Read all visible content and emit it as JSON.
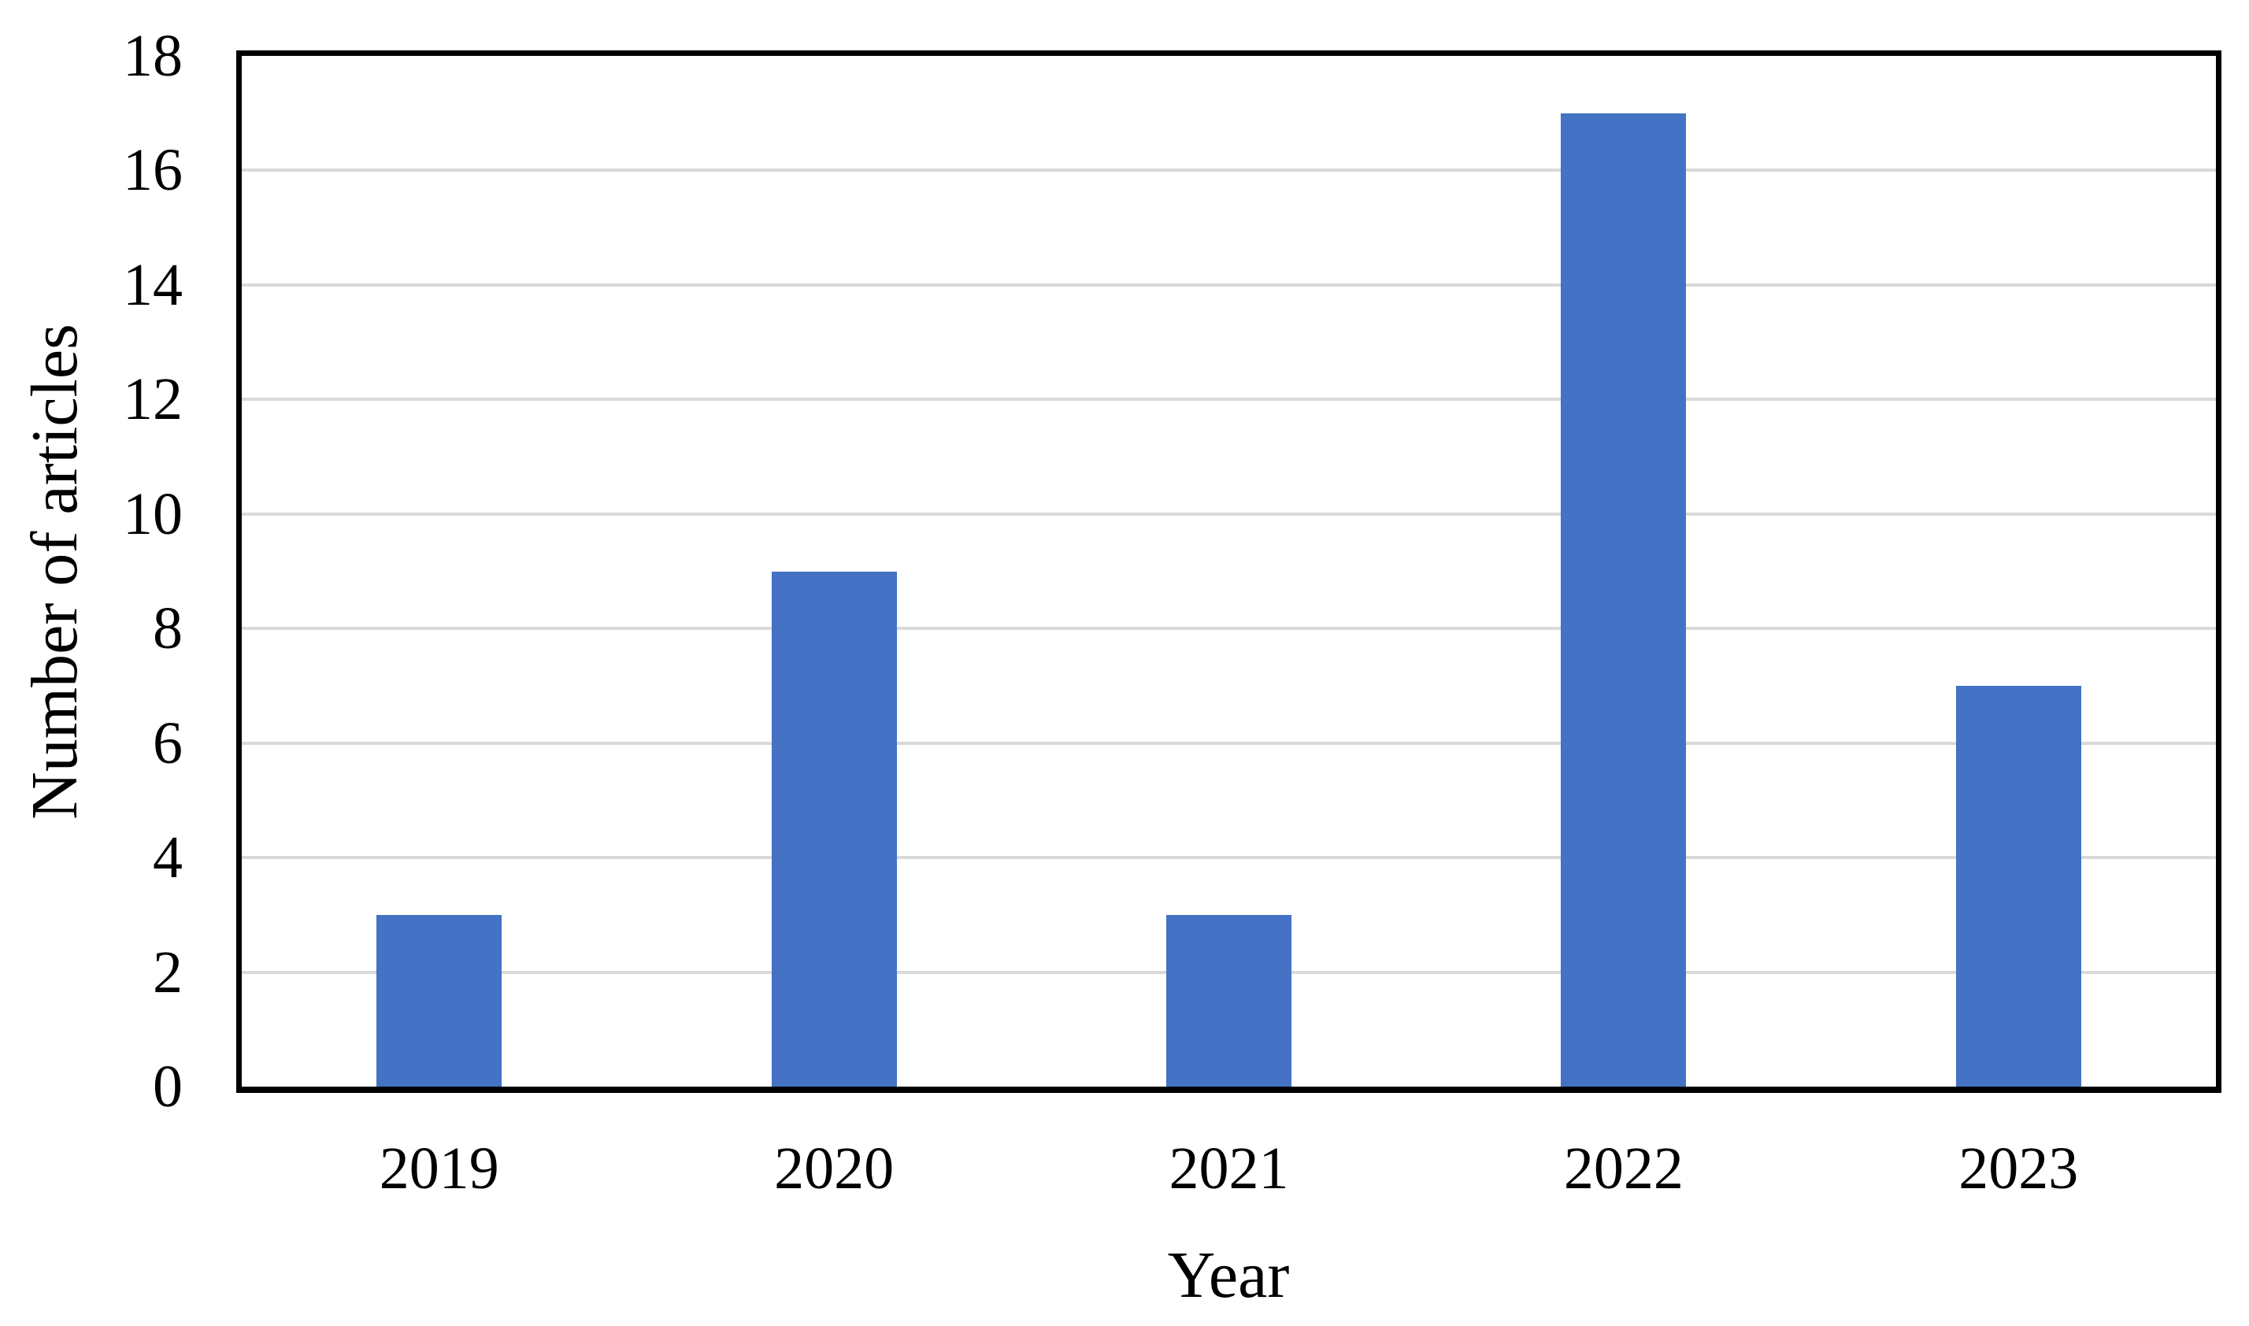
{
  "figure": {
    "background": "#FFFFFF",
    "x_axis_title": "Year",
    "y_axis_title": "Number of articles",
    "colors": {
      "bar": "#4472C4",
      "gridline": "#D9D9D9",
      "axis": "#000000",
      "text": "#000000"
    }
  },
  "chart_data": {
    "type": "bar",
    "categories": [
      "2019",
      "2020",
      "2021",
      "2022",
      "2023"
    ],
    "values": [
      3,
      9,
      3,
      17,
      7
    ],
    "title": "",
    "xlabel": "Year",
    "ylabel": "Number of articles",
    "ylim": [
      0,
      18
    ],
    "ytick_step": 2,
    "yticks": [
      0,
      2,
      4,
      6,
      8,
      10,
      12,
      14,
      16,
      18
    ],
    "grid": "horizontal-major",
    "legend": "none",
    "bar_color": "#4472C4",
    "plot_border": "black-box"
  }
}
